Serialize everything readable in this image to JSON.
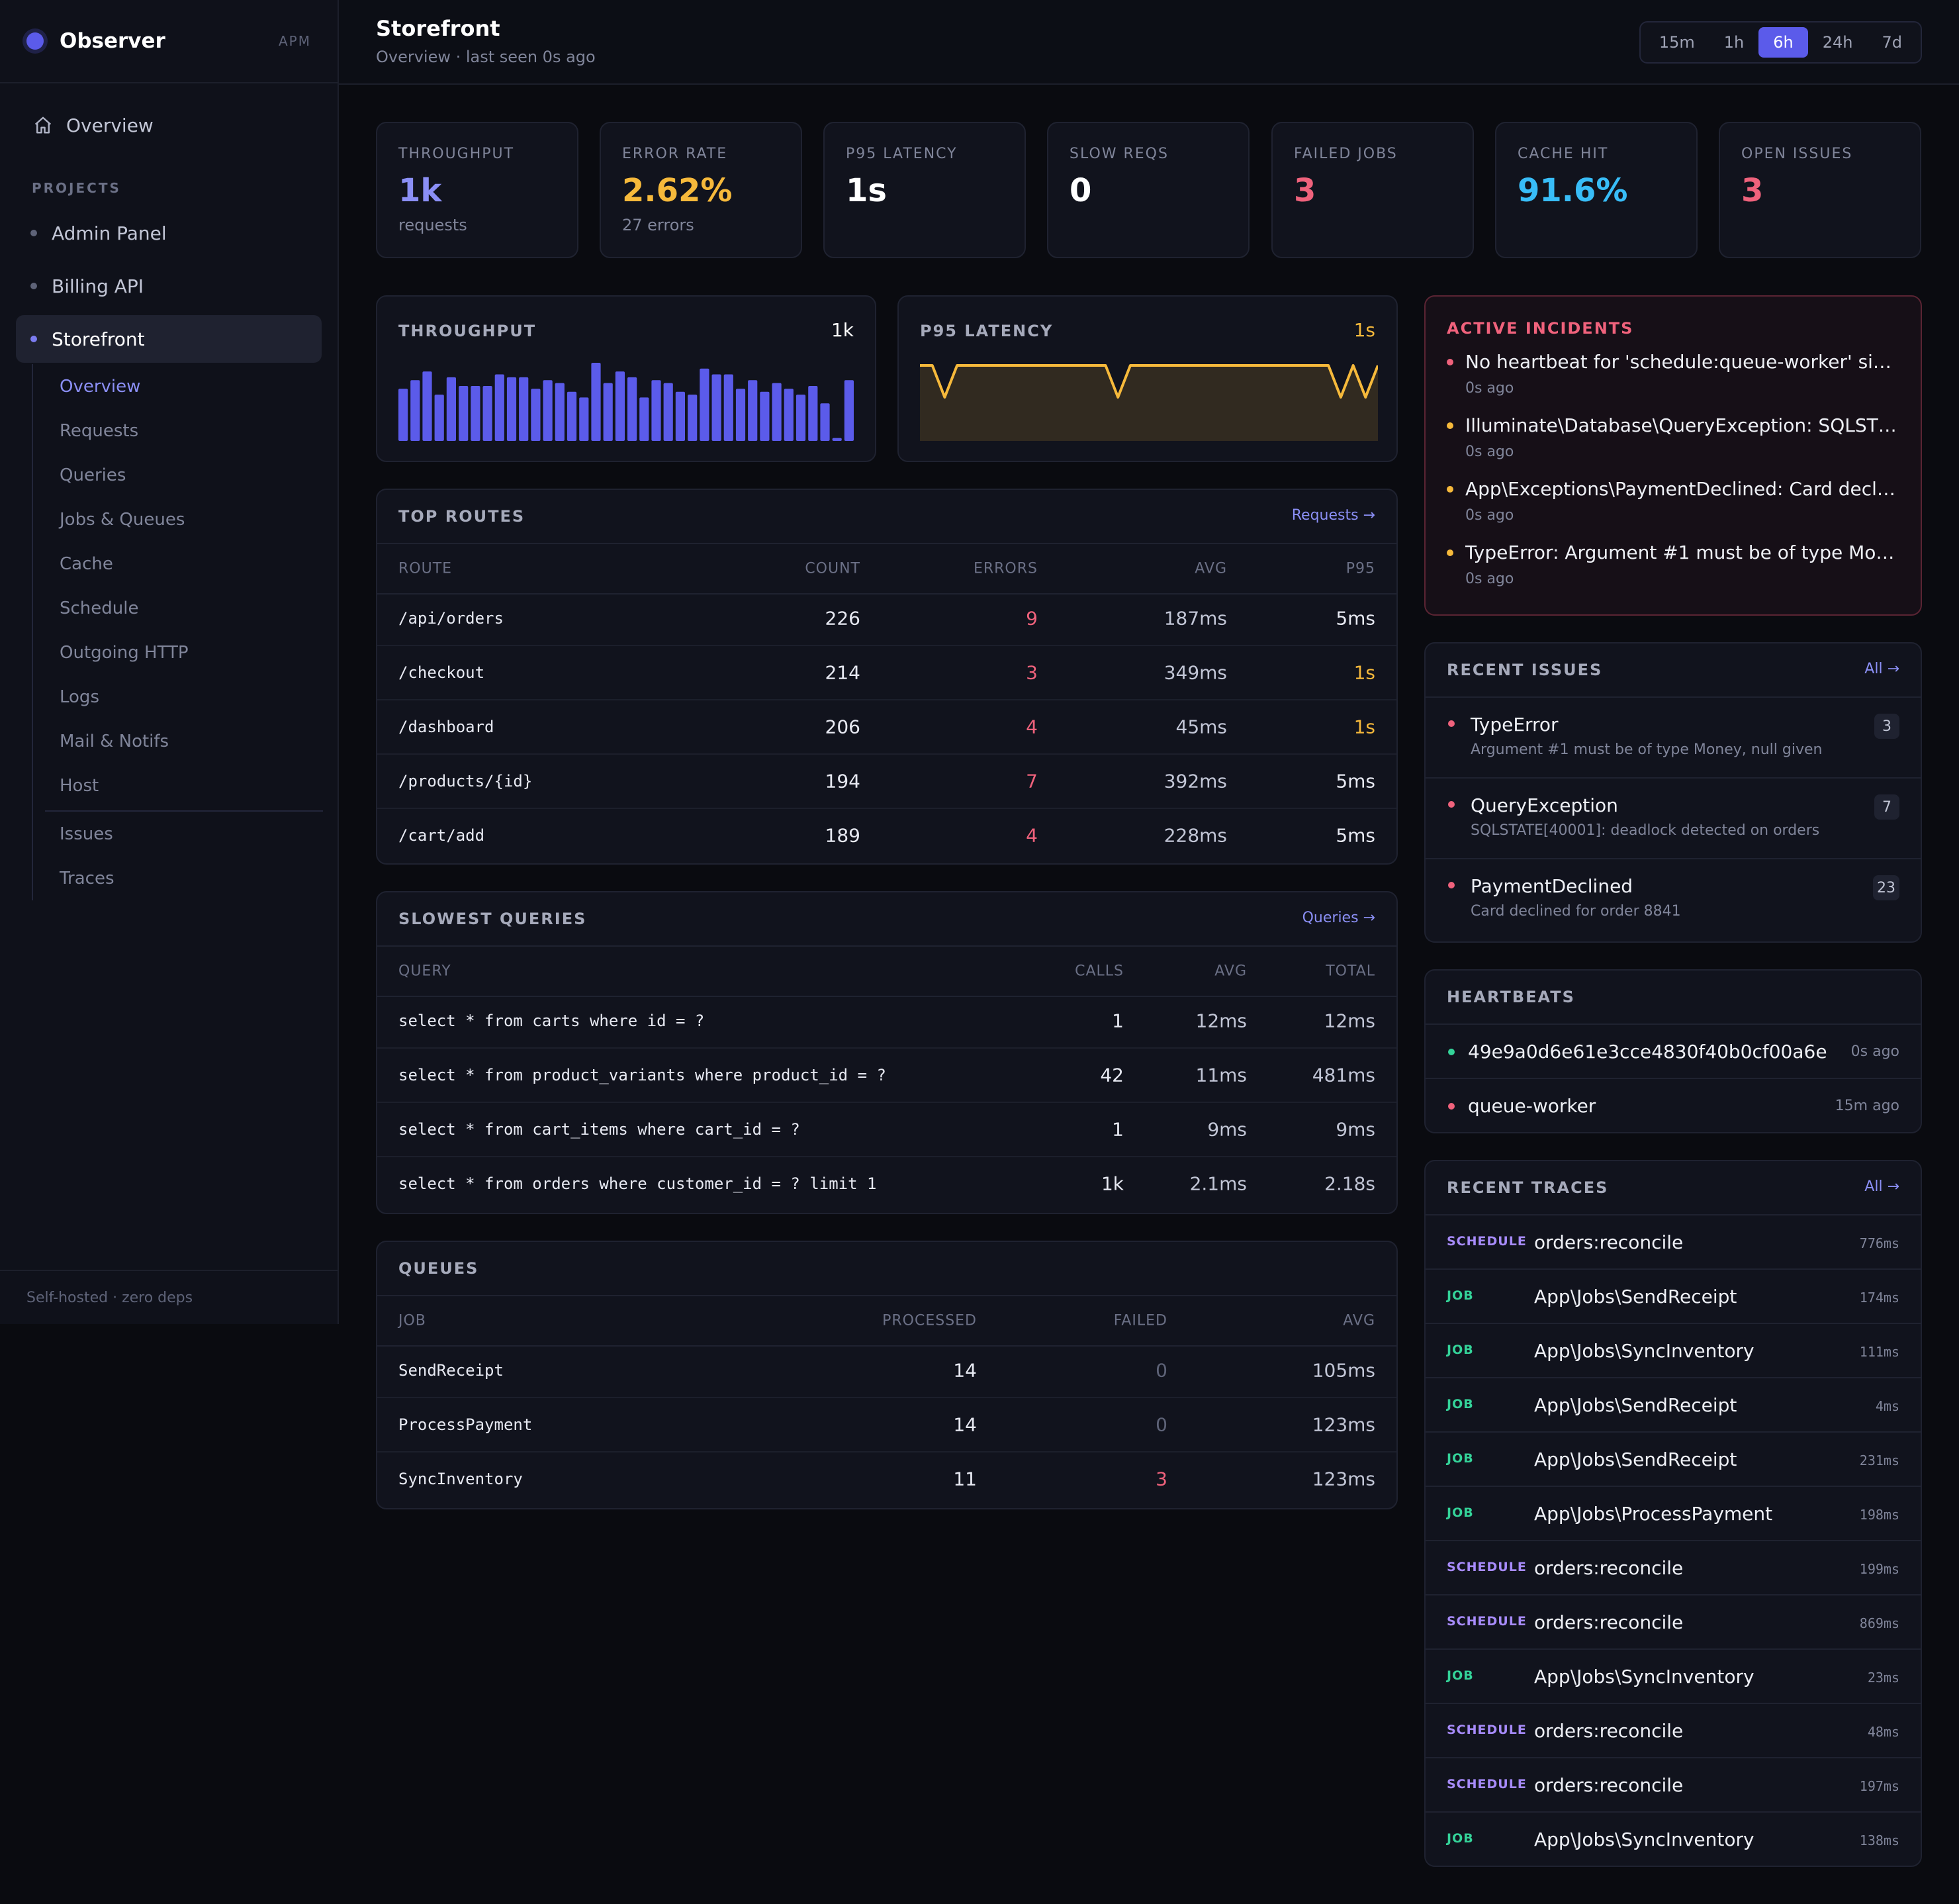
{
  "brand": {
    "name": "Observer",
    "tag": "APM"
  },
  "sidebar": {
    "overview_label": "Overview",
    "projects_label": "PROJECTS",
    "projects": [
      {
        "label": "Admin Panel",
        "active": false
      },
      {
        "label": "Billing API",
        "active": false
      },
      {
        "label": "Storefront",
        "active": true
      }
    ],
    "subnav": [
      "Overview",
      "Requests",
      "Queries",
      "Jobs & Queues",
      "Cache",
      "Schedule",
      "Outgoing HTTP",
      "Logs",
      "Mail & Notifs",
      "Host"
    ],
    "subnav_extra": [
      "Issues",
      "Traces"
    ],
    "footer": "Self-hosted · zero deps"
  },
  "header": {
    "title": "Storefront",
    "subtitle": "Overview · last seen 0s ago",
    "ranges": [
      "15m",
      "1h",
      "6h",
      "24h",
      "7d"
    ],
    "active_range": "6h"
  },
  "stats": [
    {
      "label": "THROUGHPUT",
      "value": "1k",
      "sub": "requests",
      "color": "#8b8ff5"
    },
    {
      "label": "ERROR RATE",
      "value": "2.62%",
      "sub": "27 errors",
      "color": "#f6b93b"
    },
    {
      "label": "P95 LATENCY",
      "value": "1s",
      "sub": "",
      "color": "#ffffff"
    },
    {
      "label": "SLOW REQS",
      "value": "0",
      "sub": "",
      "color": "#ffffff"
    },
    {
      "label": "FAILED JOBS",
      "value": "3",
      "sub": "",
      "color": "#f0627c"
    },
    {
      "label": "CACHE HIT",
      "value": "91.6%",
      "sub": "",
      "color": "#38bdf8"
    },
    {
      "label": "OPEN ISSUES",
      "value": "3",
      "sub": "",
      "color": "#f0627c"
    }
  ],
  "throughput_chart": {
    "title": "THROUGHPUT",
    "value": "1k",
    "bar_color": "#5b5bea",
    "values": [
      18,
      21,
      24,
      16,
      22,
      19,
      19,
      19,
      23,
      22,
      22,
      18,
      21,
      20,
      17,
      15,
      27,
      20,
      24,
      22,
      15,
      21,
      20,
      17,
      16,
      25,
      23,
      23,
      18,
      21,
      17,
      20,
      18,
      16,
      19,
      13,
      1,
      21
    ]
  },
  "latency_chart": {
    "title": "P95 LATENCY",
    "value": "1s",
    "line_color": "#f6b93b",
    "values": [
      1,
      1,
      0,
      1,
      1,
      1,
      1,
      1,
      1,
      1,
      1,
      1,
      1,
      1,
      1,
      1,
      0,
      1,
      1,
      1,
      1,
      1,
      1,
      1,
      1,
      1,
      1,
      1,
      1,
      1,
      1,
      1,
      1,
      1,
      0,
      1,
      0,
      1
    ]
  },
  "incidents": {
    "title": "ACTIVE INCIDENTS",
    "items": [
      {
        "text": "No heartbeat for 'schedule:queue-worker' si…",
        "time": "0s ago",
        "color": "#f0627c"
      },
      {
        "text": "Illuminate\\Database\\QueryException: SQLST…",
        "time": "0s ago",
        "color": "#f6b93b"
      },
      {
        "text": "App\\Exceptions\\PaymentDeclined: Card decl…",
        "time": "0s ago",
        "color": "#f6b93b"
      },
      {
        "text": "TypeError: Argument #1 must be of type Mo…",
        "time": "0s ago",
        "color": "#f6b93b"
      }
    ]
  },
  "top_routes": {
    "title": "TOP ROUTES",
    "link": "Requests →",
    "columns": [
      "ROUTE",
      "COUNT",
      "ERRORS",
      "AVG",
      "P95"
    ],
    "rows": [
      {
        "route": "/api/orders",
        "count": "226",
        "errors": "9",
        "avg": "187ms",
        "p95": "5ms",
        "p95_warn": false
      },
      {
        "route": "/checkout",
        "count": "214",
        "errors": "3",
        "avg": "349ms",
        "p95": "1s",
        "p95_warn": true
      },
      {
        "route": "/dashboard",
        "count": "206",
        "errors": "4",
        "avg": "45ms",
        "p95": "1s",
        "p95_warn": true
      },
      {
        "route": "/products/{id}",
        "count": "194",
        "errors": "7",
        "avg": "392ms",
        "p95": "5ms",
        "p95_warn": false
      },
      {
        "route": "/cart/add",
        "count": "189",
        "errors": "4",
        "avg": "228ms",
        "p95": "5ms",
        "p95_warn": false
      }
    ]
  },
  "slowest_queries": {
    "title": "SLOWEST QUERIES",
    "link": "Queries →",
    "columns": [
      "QUERY",
      "CALLS",
      "AVG",
      "TOTAL"
    ],
    "rows": [
      {
        "query": "select * from carts where id = ?",
        "calls": "1",
        "avg": "12ms",
        "total": "12ms"
      },
      {
        "query": "select * from product_variants where product_id = ?",
        "calls": "42",
        "avg": "11ms",
        "total": "481ms"
      },
      {
        "query": "select * from cart_items where cart_id = ?",
        "calls": "1",
        "avg": "9ms",
        "total": "9ms"
      },
      {
        "query": "select * from orders where customer_id = ? limit 1",
        "calls": "1k",
        "avg": "2.1ms",
        "total": "2.18s"
      }
    ]
  },
  "queues": {
    "title": "QUEUES",
    "columns": [
      "JOB",
      "PROCESSED",
      "FAILED",
      "AVG"
    ],
    "rows": [
      {
        "job": "SendReceipt",
        "processed": "14",
        "failed": "0",
        "avg": "105ms"
      },
      {
        "job": "ProcessPayment",
        "processed": "14",
        "failed": "0",
        "avg": "123ms"
      },
      {
        "job": "SyncInventory",
        "processed": "11",
        "failed": "3",
        "avg": "123ms"
      }
    ]
  },
  "recent_issues": {
    "title": "RECENT ISSUES",
    "link": "All →",
    "items": [
      {
        "name": "TypeError",
        "message": "Argument #1 must be of type Money, null given",
        "count": "3"
      },
      {
        "name": "QueryException",
        "message": "SQLSTATE[40001]: deadlock detected on orders",
        "count": "7"
      },
      {
        "name": "PaymentDeclined",
        "message": "Card declined for order 8841",
        "count": "23"
      }
    ]
  },
  "heartbeats": {
    "title": "HEARTBEATS",
    "items": [
      {
        "name": "49e9a0d6e61e3cce4830f40b0cf00a6e",
        "time": "0s ago",
        "color": "#34d399"
      },
      {
        "name": "queue-worker",
        "time": "15m ago",
        "color": "#f0627c"
      }
    ]
  },
  "recent_traces": {
    "title": "RECENT TRACES",
    "link": "All →",
    "items": [
      {
        "type": "SCHEDULE",
        "name": "orders:reconcile",
        "duration": "776ms"
      },
      {
        "type": "JOB",
        "name": "App\\Jobs\\SendReceipt",
        "duration": "174ms"
      },
      {
        "type": "JOB",
        "name": "App\\Jobs\\SyncInventory",
        "duration": "111ms"
      },
      {
        "type": "JOB",
        "name": "App\\Jobs\\SendReceipt",
        "duration": "4ms"
      },
      {
        "type": "JOB",
        "name": "App\\Jobs\\SendReceipt",
        "duration": "231ms"
      },
      {
        "type": "JOB",
        "name": "App\\Jobs\\ProcessPayment",
        "duration": "198ms"
      },
      {
        "type": "SCHEDULE",
        "name": "orders:reconcile",
        "duration": "199ms"
      },
      {
        "type": "SCHEDULE",
        "name": "orders:reconcile",
        "duration": "869ms"
      },
      {
        "type": "JOB",
        "name": "App\\Jobs\\SyncInventory",
        "duration": "23ms"
      },
      {
        "type": "SCHEDULE",
        "name": "orders:reconcile",
        "duration": "48ms"
      },
      {
        "type": "SCHEDULE",
        "name": "orders:reconcile",
        "duration": "197ms"
      },
      {
        "type": "JOB",
        "name": "App\\Jobs\\SyncInventory",
        "duration": "138ms"
      }
    ]
  }
}
